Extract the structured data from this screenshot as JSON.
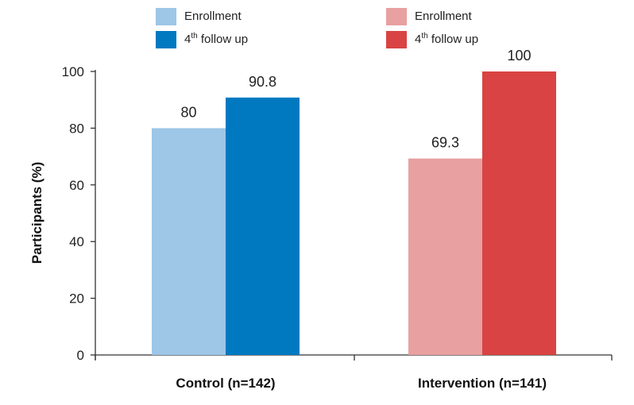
{
  "chart_data": {
    "type": "bar",
    "title": "",
    "xlabel": "",
    "ylabel": "Participants (%)",
    "ylim": [
      0,
      100
    ],
    "yticks": [
      0,
      20,
      40,
      60,
      80,
      100
    ],
    "grid": false,
    "legend_position": "top",
    "groups": [
      {
        "category": "Control (n=142)",
        "series": [
          {
            "name": "Enrollment",
            "value": 80,
            "label": "80",
            "color": "#9dc6e7"
          },
          {
            "name": "4th follow up",
            "value": 90.8,
            "label": "90.8",
            "color": "#0079c1"
          }
        ]
      },
      {
        "category": "Intervention (n=141)",
        "series": [
          {
            "name": "Enrollment",
            "value": 69.3,
            "label": "69.3",
            "color": "#e8a0a0"
          },
          {
            "name": "4th follow up",
            "value": 100,
            "label": "100",
            "color": "#d94343"
          }
        ]
      }
    ],
    "legends": [
      {
        "group": "Control (n=142)",
        "entries": [
          {
            "text": "Enrollment",
            "color": "#9dc6e7"
          },
          {
            "prefix": "4",
            "sup": "th",
            "text": " follow up",
            "color": "#0079c1"
          }
        ]
      },
      {
        "group": "Intervention (n=141)",
        "entries": [
          {
            "text": "Enrollment",
            "color": "#e8a0a0"
          },
          {
            "prefix": "4",
            "sup": "th",
            "text": " follow up",
            "color": "#d94343"
          }
        ]
      }
    ]
  }
}
